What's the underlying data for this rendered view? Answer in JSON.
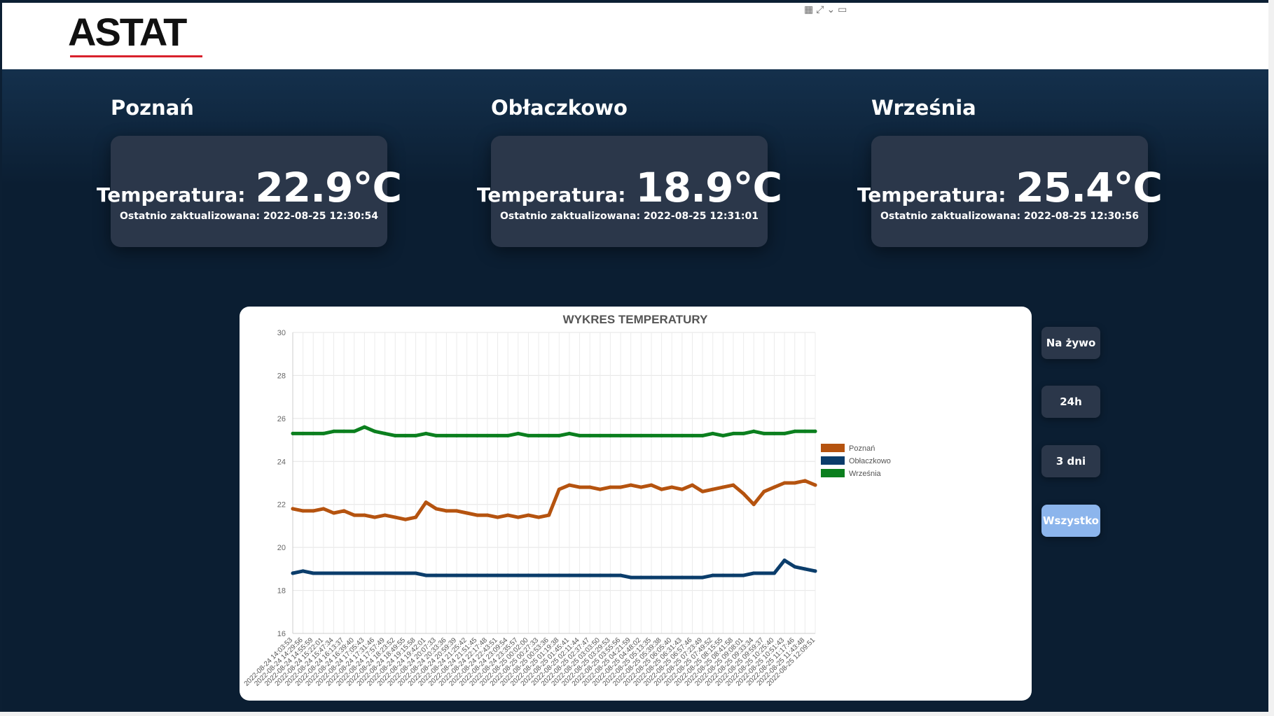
{
  "header": {
    "logo_text": "ASTAT",
    "logo_color": "#d8212c"
  },
  "locations": [
    {
      "name": "Poznań",
      "temp_label": "Temperatura:",
      "temp_value": "22.9°C",
      "updated": "Ostatnio zaktualizowana: 2022-08-25 12:30:54"
    },
    {
      "name": "Obłaczkowo",
      "temp_label": "Temperatura:",
      "temp_value": "18.9°C",
      "updated": "Ostatnio zaktualizowana: 2022-08-25 12:31:01"
    },
    {
      "name": "Września",
      "temp_label": "Temperatura:",
      "temp_value": "25.4°C",
      "updated": "Ostatnio zaktualizowana: 2022-08-25 12:30:56"
    }
  ],
  "range_buttons": [
    {
      "label": "Na żywo",
      "active": false
    },
    {
      "label": "24h",
      "active": false
    },
    {
      "label": "3 dni",
      "active": false
    },
    {
      "label": "Wszystko",
      "active": true
    }
  ],
  "chart_data": {
    "type": "line",
    "title": "WYKRES TEMPERATURY",
    "ylim": [
      16,
      30
    ],
    "yticks": [
      16,
      18,
      20,
      22,
      24,
      26,
      28,
      30
    ],
    "grid": true,
    "legend_position": "right",
    "x": [
      "2022-08-24 14:03:53",
      "2022-08-24 14:29:56",
      "2022-08-24 14:55:59",
      "2022-08-24 15:22:01",
      "2022-08-24 15:47:34",
      "2022-08-24 16:13:37",
      "2022-08-24 16:39:40",
      "2022-08-24 17:05:43",
      "2022-08-24 17:31:46",
      "2022-08-24 17:57:49",
      "2022-08-24 18:23:52",
      "2022-08-24 18:49:55",
      "2022-08-24 19:15:58",
      "2022-08-24 19:42:01",
      "2022-08-24 20:07:33",
      "2022-08-24 20:33:36",
      "2022-08-24 20:59:39",
      "2022-08-24 21:25:42",
      "2022-08-24 21:51:45",
      "2022-08-24 22:17:48",
      "2022-08-24 22:43:51",
      "2022-08-24 23:09:54",
      "2022-08-24 23:35:57",
      "2022-08-25 00:02:00",
      "2022-08-25 00:27:33",
      "2022-08-25 00:53:36",
      "2022-08-25 01:19:38",
      "2022-08-25 01:45:41",
      "2022-08-25 02:11:44",
      "2022-08-25 02:37:47",
      "2022-08-25 03:03:50",
      "2022-08-25 03:29:53",
      "2022-08-25 03:55:56",
      "2022-08-25 04:21:59",
      "2022-08-25 04:48:02",
      "2022-08-25 05:13:35",
      "2022-08-25 05:39:38",
      "2022-08-25 06:05:40",
      "2022-08-25 06:31:43",
      "2022-08-25 06:57:46",
      "2022-08-25 07:23:49",
      "2022-08-25 07:49:52",
      "2022-08-25 08:15:55",
      "2022-08-25 08:41:58",
      "2022-08-25 09:08:01",
      "2022-08-25 09:33:34",
      "2022-08-25 09:59:37",
      "2022-08-25 10:25:40",
      "2022-08-25 10:51:43",
      "2022-08-25 11:17:46",
      "2022-08-25 11:43:48",
      "2022-08-25 12:09:51"
    ],
    "series": [
      {
        "name": "Poznań",
        "color": "#b5530f",
        "values": [
          21.8,
          21.7,
          21.7,
          21.8,
          21.6,
          21.7,
          21.5,
          21.5,
          21.4,
          21.5,
          21.4,
          21.3,
          21.4,
          22.1,
          21.8,
          21.7,
          21.7,
          21.6,
          21.5,
          21.5,
          21.4,
          21.5,
          21.4,
          21.5,
          21.4,
          21.5,
          22.7,
          22.9,
          22.8,
          22.8,
          22.7,
          22.8,
          22.8,
          22.9,
          22.8,
          22.9,
          22.7,
          22.8,
          22.7,
          22.9,
          22.6,
          22.7,
          22.8,
          22.9,
          22.5,
          22.0,
          22.6,
          22.8,
          23.0,
          23.0,
          23.1,
          22.9
        ]
      },
      {
        "name": "Obłaczkowo",
        "color": "#0b3d6b",
        "values": [
          18.8,
          18.9,
          18.8,
          18.8,
          18.8,
          18.8,
          18.8,
          18.8,
          18.8,
          18.8,
          18.8,
          18.8,
          18.8,
          18.7,
          18.7,
          18.7,
          18.7,
          18.7,
          18.7,
          18.7,
          18.7,
          18.7,
          18.7,
          18.7,
          18.7,
          18.7,
          18.7,
          18.7,
          18.7,
          18.7,
          18.7,
          18.7,
          18.7,
          18.6,
          18.6,
          18.6,
          18.6,
          18.6,
          18.6,
          18.6,
          18.6,
          18.7,
          18.7,
          18.7,
          18.7,
          18.8,
          18.8,
          18.8,
          19.4,
          19.1,
          19.0,
          18.9
        ]
      },
      {
        "name": "Września",
        "color": "#0b7f1e",
        "values": [
          25.3,
          25.3,
          25.3,
          25.3,
          25.4,
          25.4,
          25.4,
          25.6,
          25.4,
          25.3,
          25.2,
          25.2,
          25.2,
          25.3,
          25.2,
          25.2,
          25.2,
          25.2,
          25.2,
          25.2,
          25.2,
          25.2,
          25.3,
          25.2,
          25.2,
          25.2,
          25.2,
          25.3,
          25.2,
          25.2,
          25.2,
          25.2,
          25.2,
          25.2,
          25.2,
          25.2,
          25.2,
          25.2,
          25.2,
          25.2,
          25.2,
          25.3,
          25.2,
          25.3,
          25.3,
          25.4,
          25.3,
          25.3,
          25.3,
          25.4,
          25.4,
          25.4
        ]
      }
    ]
  }
}
